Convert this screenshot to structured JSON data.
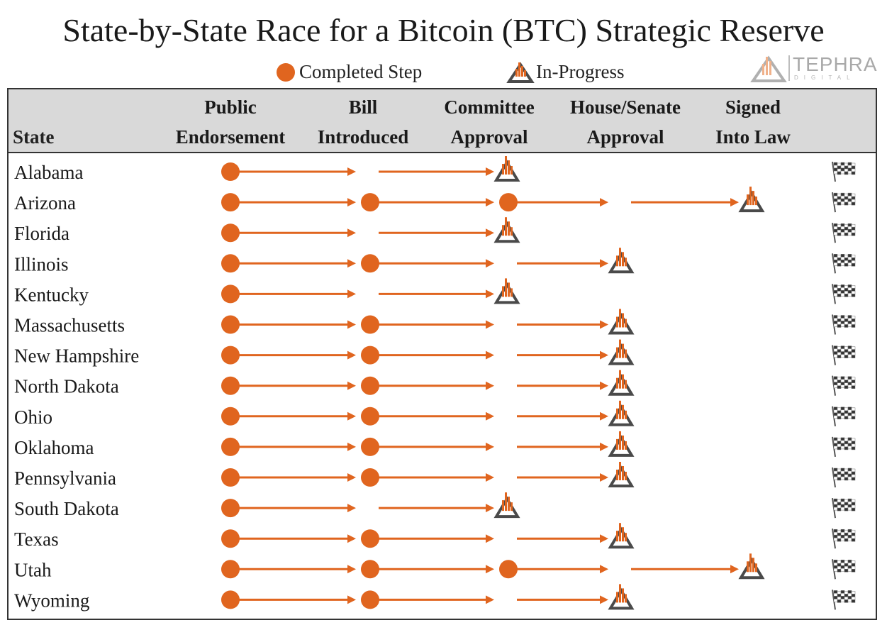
{
  "chart_data": {
    "type": "table",
    "title": "State-by-State Race for a Bitcoin (BTC) Strategic Reserve",
    "legend": [
      {
        "name": "Completed Step",
        "marker": "circle",
        "color": "#e0651f"
      },
      {
        "name": "In-Progress",
        "marker": "triangle",
        "color": "#e0651f"
      }
    ],
    "legend_placement": "top-center",
    "state_header": "State",
    "stages": [
      {
        "line1": "Public",
        "line2": "Endorsement"
      },
      {
        "line1": "Bill",
        "line2": "Introduced"
      },
      {
        "line1": "Committee",
        "line2": "Approval"
      },
      {
        "line1": "House/Senate",
        "line2": "Approval"
      },
      {
        "line1": "Signed",
        "line2": "Into Law"
      }
    ],
    "rows": [
      {
        "state": "Alabama",
        "completed": 1,
        "in_progress": 2
      },
      {
        "state": "Arizona",
        "completed": 3,
        "in_progress": 4
      },
      {
        "state": "Florida",
        "completed": 1,
        "in_progress": 2
      },
      {
        "state": "Illinois",
        "completed": 2,
        "in_progress": 3
      },
      {
        "state": "Kentucky",
        "completed": 1,
        "in_progress": 2
      },
      {
        "state": "Massachusetts",
        "completed": 2,
        "in_progress": 3
      },
      {
        "state": "New Hampshire",
        "completed": 2,
        "in_progress": 3
      },
      {
        "state": "North Dakota",
        "completed": 2,
        "in_progress": 3
      },
      {
        "state": "Ohio",
        "completed": 2,
        "in_progress": 3
      },
      {
        "state": "Oklahoma",
        "completed": 2,
        "in_progress": 3
      },
      {
        "state": "Pennsylvania",
        "completed": 2,
        "in_progress": 3
      },
      {
        "state": "South Dakota",
        "completed": 1,
        "in_progress": 2
      },
      {
        "state": "Texas",
        "completed": 2,
        "in_progress": 3
      },
      {
        "state": "Utah",
        "completed": 3,
        "in_progress": 4
      },
      {
        "state": "Wyoming",
        "completed": 2,
        "in_progress": 3
      }
    ],
    "finish_marker": "checkered-flag-icon",
    "colors": {
      "accent": "#e0651f",
      "triangle": "#4a4a4a",
      "header_bg": "#d9d9d9"
    }
  },
  "brand": {
    "name": "TEPHRA",
    "sub": "DIGITAL",
    "logo_icon": "tephra-logo-icon"
  }
}
